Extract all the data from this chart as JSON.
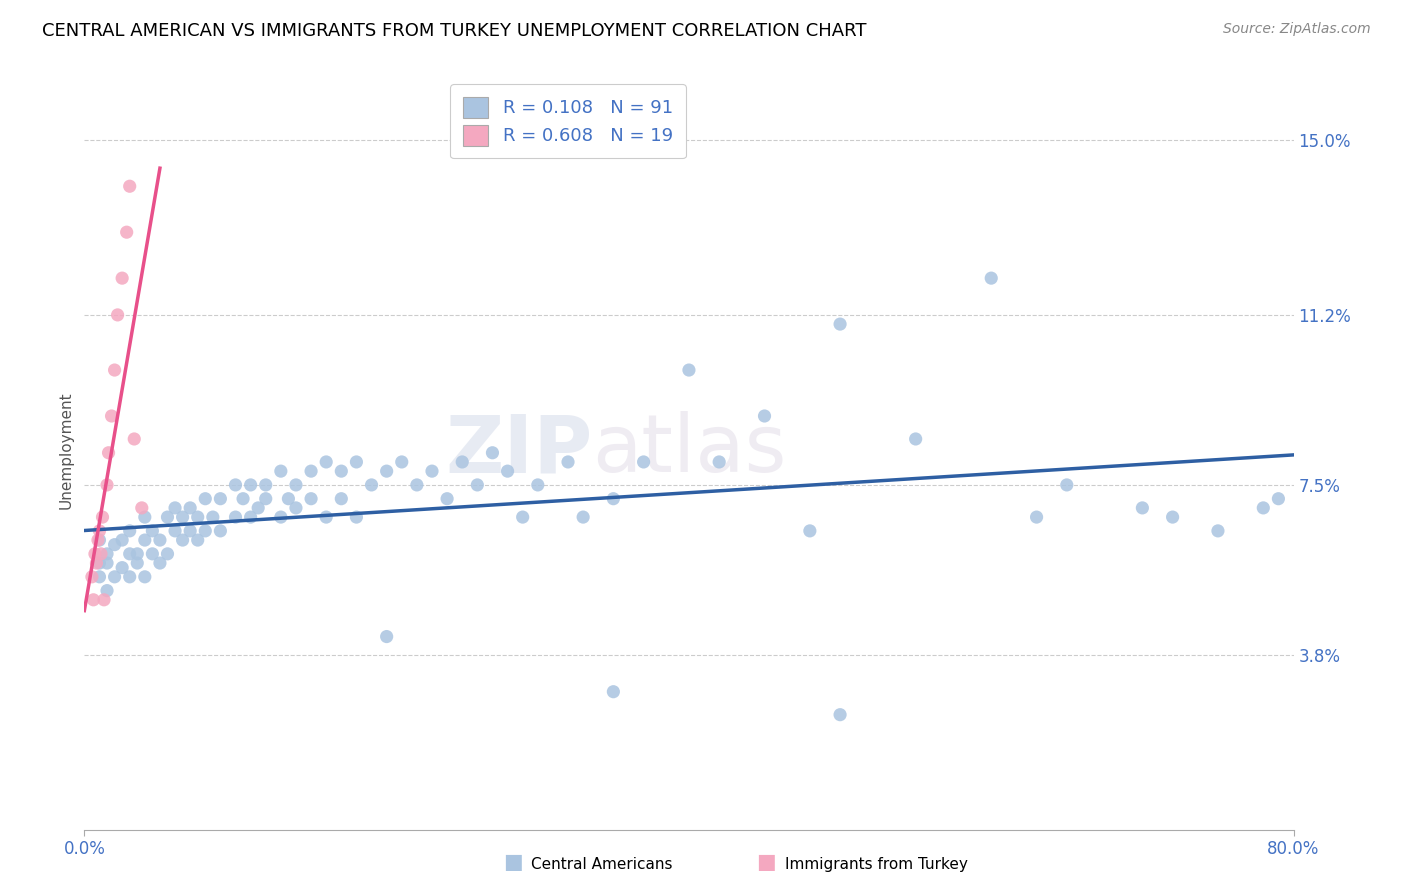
{
  "title": "CENTRAL AMERICAN VS IMMIGRANTS FROM TURKEY UNEMPLOYMENT CORRELATION CHART",
  "source": "Source: ZipAtlas.com",
  "ylabel": "Unemployment",
  "xlim": [
    0.0,
    0.8
  ],
  "ylim": [
    0.0,
    0.165
  ],
  "yticks": [
    0.038,
    0.075,
    0.112,
    0.15
  ],
  "ytick_labels": [
    "3.8%",
    "7.5%",
    "11.2%",
    "15.0%"
  ],
  "xticks": [
    0.0,
    0.8
  ],
  "xtick_labels": [
    "0.0%",
    "80.0%"
  ],
  "r_blue": 0.108,
  "n_blue": 91,
  "r_pink": 0.608,
  "n_pink": 19,
  "blue_scatter_x": [
    0.01,
    0.01,
    0.01,
    0.015,
    0.015,
    0.015,
    0.02,
    0.02,
    0.025,
    0.025,
    0.03,
    0.03,
    0.03,
    0.035,
    0.035,
    0.04,
    0.04,
    0.04,
    0.045,
    0.045,
    0.05,
    0.05,
    0.055,
    0.055,
    0.06,
    0.06,
    0.065,
    0.065,
    0.07,
    0.07,
    0.075,
    0.075,
    0.08,
    0.08,
    0.085,
    0.09,
    0.09,
    0.1,
    0.1,
    0.105,
    0.11,
    0.11,
    0.115,
    0.12,
    0.12,
    0.13,
    0.13,
    0.135,
    0.14,
    0.14,
    0.15,
    0.15,
    0.16,
    0.16,
    0.17,
    0.17,
    0.18,
    0.18,
    0.19,
    0.2,
    0.21,
    0.22,
    0.23,
    0.24,
    0.25,
    0.26,
    0.27,
    0.28,
    0.29,
    0.3,
    0.32,
    0.33,
    0.35,
    0.37,
    0.4,
    0.42,
    0.45,
    0.48,
    0.5,
    0.55,
    0.6,
    0.63,
    0.65,
    0.7,
    0.72,
    0.75,
    0.78,
    0.79,
    0.2,
    0.35,
    0.5
  ],
  "blue_scatter_y": [
    0.058,
    0.063,
    0.055,
    0.06,
    0.058,
    0.052,
    0.062,
    0.055,
    0.063,
    0.057,
    0.06,
    0.055,
    0.065,
    0.06,
    0.058,
    0.063,
    0.055,
    0.068,
    0.06,
    0.065,
    0.063,
    0.058,
    0.068,
    0.06,
    0.065,
    0.07,
    0.063,
    0.068,
    0.065,
    0.07,
    0.068,
    0.063,
    0.072,
    0.065,
    0.068,
    0.072,
    0.065,
    0.075,
    0.068,
    0.072,
    0.075,
    0.068,
    0.07,
    0.075,
    0.072,
    0.078,
    0.068,
    0.072,
    0.075,
    0.07,
    0.078,
    0.072,
    0.08,
    0.068,
    0.078,
    0.072,
    0.08,
    0.068,
    0.075,
    0.078,
    0.08,
    0.075,
    0.078,
    0.072,
    0.08,
    0.075,
    0.082,
    0.078,
    0.068,
    0.075,
    0.08,
    0.068,
    0.072,
    0.08,
    0.1,
    0.08,
    0.09,
    0.065,
    0.11,
    0.085,
    0.12,
    0.068,
    0.075,
    0.07,
    0.068,
    0.065,
    0.07,
    0.072,
    0.042,
    0.03,
    0.025
  ],
  "pink_scatter_x": [
    0.005,
    0.006,
    0.007,
    0.008,
    0.009,
    0.01,
    0.011,
    0.012,
    0.013,
    0.015,
    0.016,
    0.018,
    0.02,
    0.022,
    0.025,
    0.028,
    0.03,
    0.033,
    0.038
  ],
  "pink_scatter_y": [
    0.055,
    0.05,
    0.06,
    0.058,
    0.063,
    0.065,
    0.06,
    0.068,
    0.05,
    0.075,
    0.082,
    0.09,
    0.1,
    0.112,
    0.12,
    0.13,
    0.14,
    0.085,
    0.07
  ],
  "blue_color": "#aac4e0",
  "pink_color": "#f4a8c0",
  "blue_line_color": "#2e5fa3",
  "pink_line_color": "#e8508a",
  "watermark_zip": "ZIP",
  "watermark_atlas": "atlas",
  "title_fontsize": 13,
  "axis_label_color": "#4472c4",
  "legend_color": "#4472c4",
  "legend_label_blue": "Central Americans",
  "legend_label_pink": "Immigrants from Turkey"
}
